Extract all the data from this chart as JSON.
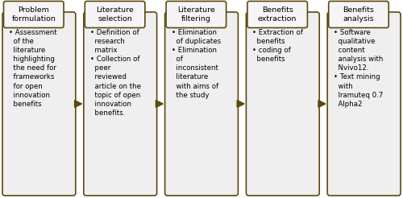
{
  "boxes": [
    {
      "title": "Problem\nformulation",
      "bullets": "• Assessment\n  of the\n  literature\n  highlighting\n  the need for\n  frameworks\n  for open\n  innovation\n  benefits"
    },
    {
      "title": "Literature\nselection",
      "bullets": "• Definition of\n  research\n  matrix\n• Collection of\n  peer\n  reviewed\n  article on the\n  topic of open\n  innovation\n  benefits."
    },
    {
      "title": "Literature\nfiltering",
      "bullets": "• Elimination\n  of duplicates\n• Elimination\n  of\n  inconsistent\n  literature\n  with aims of\n  the study"
    },
    {
      "title": "Benefits\nextraction",
      "bullets": "• Extraction of\n  benefits\n• coding of\n  benefits"
    },
    {
      "title": "Benefits\nanalysis",
      "bullets": "• Software\n  qualitative\n  content\n  analysis with\n  Nvivo12.\n• Text mining\n  with\n  Iramuteq 0.7\n  Alpha2"
    }
  ],
  "box_border_color": "#5a4a10",
  "box_fill_color": "#efefef",
  "title_fill_color": "#f5f5f5",
  "arrow_color": "#7a6a20",
  "background_color": "#ffffff",
  "title_fontsize": 6.8,
  "bullet_fontsize": 6.2
}
